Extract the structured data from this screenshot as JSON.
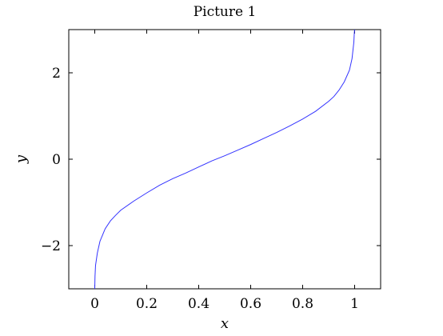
{
  "chart_data": {
    "type": "line",
    "title": "Picture 1",
    "xlabel": "x",
    "ylabel": "y",
    "xlim": [
      -0.1,
      1.1
    ],
    "ylim": [
      -3,
      3
    ],
    "grid": false,
    "x_ticks": [
      0,
      0.2,
      0.4,
      0.6,
      0.8,
      1
    ],
    "x_tick_labels": [
      "0",
      "0.2",
      "0.4",
      "0.6",
      "0.8",
      "1"
    ],
    "y_ticks": [
      -2,
      0,
      2
    ],
    "y_tick_labels": [
      "−2",
      "0",
      "2"
    ],
    "series": [
      {
        "color": "#3333ff",
        "x": [
          0,
          0.001,
          0.003,
          0.01,
          0.02,
          0.04,
          0.06,
          0.08,
          0.1,
          0.15,
          0.2,
          0.25,
          0.3,
          0.35,
          0.4,
          0.45,
          0.5,
          0.55,
          0.6,
          0.65,
          0.7,
          0.75,
          0.8,
          0.85,
          0.9,
          0.92,
          0.94,
          0.96,
          0.98,
          0.99,
          0.997,
          0.999,
          1
        ],
        "y": [
          -3,
          -2.71,
          -2.46,
          -2.17,
          -1.9,
          -1.61,
          -1.43,
          -1.3,
          -1.18,
          -0.97,
          -0.78,
          -0.6,
          -0.45,
          -0.32,
          -0.18,
          -0.04,
          0.08,
          0.21,
          0.34,
          0.48,
          0.62,
          0.77,
          0.93,
          1.11,
          1.34,
          1.45,
          1.6,
          1.79,
          2.06,
          2.33,
          2.71,
          2.95,
          3
        ]
      }
    ]
  }
}
